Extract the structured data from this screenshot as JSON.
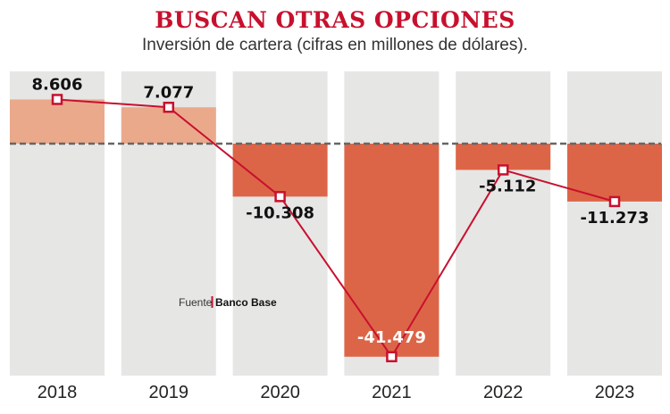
{
  "header": {
    "title": "BUSCAN OTRAS OPCIONES",
    "subtitle": "Inversión de cartera (cifras en millones de dólares)."
  },
  "source": {
    "prefix": "Fuente",
    "name": "Banco Base"
  },
  "colors": {
    "title": "#c8102e",
    "column_bg": "#e6e6e5",
    "positive_bar": "#eba98c",
    "negative_bar": "#dd6547",
    "line": "#c8102e",
    "zero_line": "#666666"
  },
  "chart_data": {
    "type": "bar",
    "title": "BUSCAN OTRAS OPCIONES",
    "subtitle": "Inversión de cartera (cifras en millones de dólares).",
    "categories": [
      "2018",
      "2019",
      "2020",
      "2021",
      "2022",
      "2023"
    ],
    "values": [
      8606,
      7077,
      -10308,
      -41479,
      -5112,
      -11273
    ],
    "value_labels": [
      "8.606",
      "7.077",
      "-10.308",
      "-41.479",
      "-5.112",
      "-11.273"
    ],
    "overlay": "line-with-square-markers",
    "xlabel": "",
    "ylabel": "",
    "ylim": [
      -43000,
      13000
    ],
    "zero_line": "dashed",
    "grid": false,
    "legend": "none"
  }
}
